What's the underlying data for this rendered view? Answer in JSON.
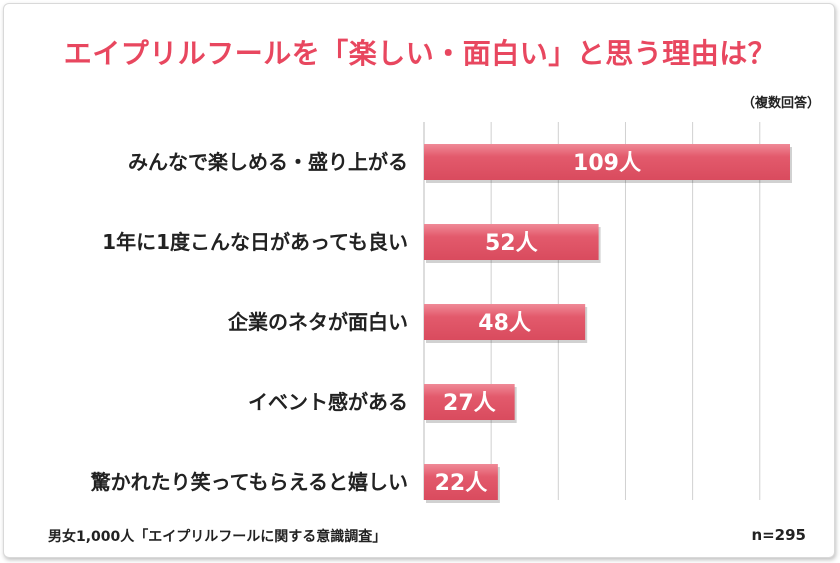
{
  "title": "エイプリルフールを「楽しい・面白い」と思う理由は？",
  "note": "（複数回答）",
  "footer": {
    "source": "男女1,000人「エイプリルフールに関する意識調査」",
    "n": "n=295"
  },
  "colors": {
    "title": "#e8475f",
    "bar": "#e35a6c",
    "bar_highlight": "#f08a97",
    "grid": "#d0d0d0"
  },
  "chart_data": {
    "type": "bar",
    "orientation": "horizontal",
    "categories": [
      "みんなで楽しめる・盛り上がる",
      "1年に1度こんな日があっても良い",
      "企業のネタが面白い",
      "イベント感がある",
      "驚かれたり笑ってもらえると嬉しい"
    ],
    "values": [
      109,
      52,
      48,
      27,
      22
    ],
    "value_labels": [
      "109人",
      "52人",
      "48人",
      "27人",
      "22人"
    ],
    "xlim": [
      0,
      130
    ],
    "grid": true
  }
}
